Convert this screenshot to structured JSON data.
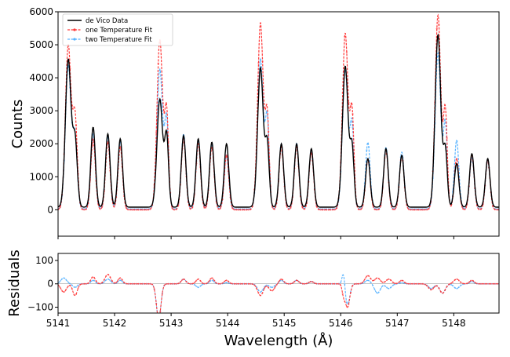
{
  "chart_data": [
    {
      "type": "line",
      "panel": "main",
      "ylabel": "Counts",
      "xlim": [
        5141.0,
        5148.8
      ],
      "ylim": [
        -800,
        6000
      ],
      "yticks": [
        0,
        1000,
        2000,
        3000,
        4000,
        5000,
        6000
      ],
      "ytick_labels": [
        "0",
        "1000",
        "2000",
        "3000",
        "4000",
        "5000",
        "6000"
      ],
      "legend_position": "top-left",
      "series": [
        {
          "name": "de Vico Data",
          "color": "#000000",
          "style": "solid"
        },
        {
          "name": "one Temperature Fit",
          "color": "#ff3b3b",
          "style": "dashed-dot-markers"
        },
        {
          "name": "two Temperature Fit",
          "color": "#5ab4ff",
          "style": "dashed-dot-markers"
        }
      ],
      "baseline": {
        "de Vico Data": 80,
        "one Temperature Fit": 0,
        "two Temperature Fit": 20
      },
      "peaks": [
        {
          "x": 5141.18,
          "data": 4550,
          "one": 4980,
          "two": 4350,
          "w": 0.05
        },
        {
          "x": 5141.3,
          "data": 2100,
          "one": 2750,
          "two": 2150,
          "w": 0.04
        },
        {
          "x": 5141.62,
          "data": 2500,
          "one": 2150,
          "two": 2300,
          "w": 0.04
        },
        {
          "x": 5141.88,
          "data": 2300,
          "one": 2050,
          "two": 2200,
          "w": 0.04
        },
        {
          "x": 5142.1,
          "data": 2150,
          "one": 1900,
          "two": 2050,
          "w": 0.04
        },
        {
          "x": 5142.8,
          "data": 3350,
          "one": 5150,
          "two": 4250,
          "w": 0.05
        },
        {
          "x": 5142.92,
          "data": 2200,
          "one": 2900,
          "two": 2650,
          "w": 0.035
        },
        {
          "x": 5143.22,
          "data": 2250,
          "one": 2150,
          "two": 2300,
          "w": 0.04
        },
        {
          "x": 5143.48,
          "data": 2150,
          "one": 2000,
          "two": 2100,
          "w": 0.04
        },
        {
          "x": 5143.72,
          "data": 2050,
          "one": 1900,
          "two": 2000,
          "w": 0.04
        },
        {
          "x": 5143.98,
          "data": 2000,
          "one": 1650,
          "two": 1650,
          "w": 0.04
        },
        {
          "x": 5144.58,
          "data": 4300,
          "one": 5650,
          "two": 4550,
          "w": 0.05
        },
        {
          "x": 5144.7,
          "data": 1950,
          "one": 2800,
          "two": 2700,
          "w": 0.035
        },
        {
          "x": 5144.95,
          "data": 2000,
          "one": 1900,
          "two": 2000,
          "w": 0.04
        },
        {
          "x": 5145.22,
          "data": 2000,
          "one": 1900,
          "two": 2000,
          "w": 0.04
        },
        {
          "x": 5145.48,
          "data": 1850,
          "one": 1750,
          "two": 1800,
          "w": 0.04
        },
        {
          "x": 5146.08,
          "data": 4350,
          "one": 5350,
          "two": 4250,
          "w": 0.05
        },
        {
          "x": 5146.2,
          "data": 1850,
          "one": 2900,
          "two": 2500,
          "w": 0.035
        },
        {
          "x": 5146.48,
          "data": 1550,
          "one": 1550,
          "two": 2050,
          "w": 0.04
        },
        {
          "x": 5146.8,
          "data": 1850,
          "one": 1800,
          "two": 1900,
          "w": 0.04
        },
        {
          "x": 5147.08,
          "data": 1650,
          "one": 1650,
          "two": 1750,
          "w": 0.04
        },
        {
          "x": 5147.72,
          "data": 5300,
          "one": 5900,
          "two": 4750,
          "w": 0.05
        },
        {
          "x": 5147.85,
          "data": 1800,
          "one": 2950,
          "two": 2550,
          "w": 0.035
        },
        {
          "x": 5148.05,
          "data": 1400,
          "one": 1550,
          "two": 2100,
          "w": 0.04
        },
        {
          "x": 5148.32,
          "data": 1700,
          "one": 1650,
          "two": 1600,
          "w": 0.04
        },
        {
          "x": 5148.6,
          "data": 1550,
          "one": 1500,
          "two": 1500,
          "w": 0.04
        }
      ]
    },
    {
      "type": "line",
      "panel": "residuals",
      "ylabel": "Residuals",
      "xlabel": "Wavelength (Å)",
      "xlim": [
        5141.0,
        5148.8
      ],
      "ylim": [
        -125,
        130
      ],
      "yticks": [
        -100,
        0,
        100
      ],
      "ytick_labels": [
        "−100",
        "0",
        "100"
      ],
      "xticks": [
        5141,
        5142,
        5143,
        5144,
        5145,
        5146,
        5147,
        5148
      ],
      "xtick_labels": [
        "5141",
        "5142",
        "5143",
        "5144",
        "5145",
        "5146",
        "5147",
        "5148"
      ],
      "series": [
        {
          "name": "one Temperature Fit",
          "color": "#ff3b3b"
        },
        {
          "name": "two Temperature Fit",
          "color": "#5ab4ff"
        }
      ],
      "features": [
        {
          "x": 5141.1,
          "one": -35,
          "two": 25,
          "w": 0.05
        },
        {
          "x": 5141.3,
          "one": -50,
          "two": -15,
          "w": 0.04
        },
        {
          "x": 5141.62,
          "one": 30,
          "two": 15,
          "w": 0.04
        },
        {
          "x": 5141.88,
          "one": 40,
          "two": 20,
          "w": 0.05
        },
        {
          "x": 5142.1,
          "one": 25,
          "two": 15,
          "w": 0.04
        },
        {
          "x": 5142.78,
          "one": -150,
          "two": -150,
          "w": 0.04
        },
        {
          "x": 5143.22,
          "one": 20,
          "two": 20,
          "w": 0.04
        },
        {
          "x": 5143.48,
          "one": 20,
          "two": -15,
          "w": 0.04
        },
        {
          "x": 5143.72,
          "one": 25,
          "two": 15,
          "w": 0.04
        },
        {
          "x": 5143.98,
          "one": 15,
          "two": 5,
          "w": 0.04
        },
        {
          "x": 5144.58,
          "one": -50,
          "two": -35,
          "w": 0.05
        },
        {
          "x": 5144.78,
          "one": -30,
          "two": -15,
          "w": 0.05
        },
        {
          "x": 5144.95,
          "one": 20,
          "two": 15,
          "w": 0.04
        },
        {
          "x": 5145.22,
          "one": 15,
          "two": 15,
          "w": 0.04
        },
        {
          "x": 5145.48,
          "one": 10,
          "two": 10,
          "w": 0.04
        },
        {
          "x": 5146.05,
          "one": -40,
          "two": 55,
          "w": 0.025
        },
        {
          "x": 5146.12,
          "one": -100,
          "two": -90,
          "w": 0.04
        },
        {
          "x": 5146.48,
          "one": 35,
          "two": 15,
          "w": 0.05
        },
        {
          "x": 5146.65,
          "one": 25,
          "two": -40,
          "w": 0.05
        },
        {
          "x": 5146.85,
          "one": 20,
          "two": -20,
          "w": 0.05
        },
        {
          "x": 5147.08,
          "one": 15,
          "two": 5,
          "w": 0.04
        },
        {
          "x": 5147.6,
          "one": -25,
          "two": -20,
          "w": 0.05
        },
        {
          "x": 5147.8,
          "one": -40,
          "two": -40,
          "w": 0.05
        },
        {
          "x": 5148.05,
          "one": 20,
          "two": -20,
          "w": 0.05
        },
        {
          "x": 5148.32,
          "one": 15,
          "two": 10,
          "w": 0.04
        }
      ]
    }
  ]
}
